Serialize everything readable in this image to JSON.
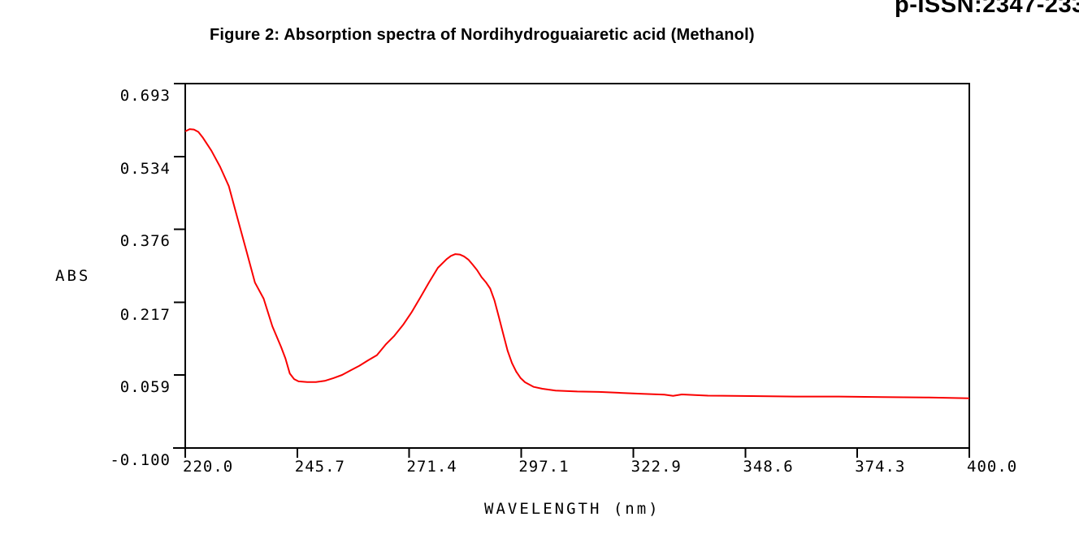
{
  "page": {
    "issn_text": "p-ISSN:2347-233",
    "figure_title": "Figure 2: Absorption spectra of Nordihydroguaiaretic acid (Methanol)"
  },
  "chart_data": {
    "type": "line",
    "title": "Figure 2: Absorption spectra of Nordihydroguaiaretic acid (Methanol)",
    "xlabel": "WAVELENGTH (nm)",
    "ylabel": "ABS",
    "xlim": [
      220.0,
      400.0
    ],
    "ylim": [
      -0.1,
      0.693
    ],
    "x_ticks": [
      "220.0",
      "245.7",
      "271.4",
      "297.1",
      "322.9",
      "348.6",
      "374.3",
      "400.0"
    ],
    "y_ticks": [
      "0.693",
      "0.534",
      "0.376",
      "0.217",
      "0.059",
      "-0.100"
    ],
    "grid": false,
    "legend_position": "none",
    "line_color": "#fa0000",
    "frame_color": "#000000",
    "series": [
      {
        "name": "Nordihydroguaiaretic acid absorption (Methanol)",
        "x": [
          220,
          221,
          222,
          223,
          224,
          226,
          228,
          230,
          232,
          234,
          236,
          238,
          240,
          242,
          243,
          244,
          245,
          246,
          248,
          250,
          252,
          254,
          256,
          258,
          260,
          262,
          264,
          266,
          268,
          270,
          272,
          274,
          276,
          278,
          280,
          281,
          282,
          283,
          284,
          285,
          286,
          287,
          288,
          289,
          290,
          291,
          292,
          293,
          294,
          295,
          296,
          297,
          298,
          300,
          302,
          305,
          310,
          315,
          320,
          325,
          330,
          332,
          334,
          340,
          350,
          360,
          370,
          380,
          390,
          400
        ],
        "y": [
          0.589,
          0.594,
          0.593,
          0.588,
          0.576,
          0.547,
          0.512,
          0.47,
          0.4,
          0.33,
          0.26,
          0.225,
          0.165,
          0.12,
          0.095,
          0.062,
          0.05,
          0.045,
          0.0435,
          0.0435,
          0.046,
          0.052,
          0.059,
          0.069,
          0.079,
          0.091,
          0.102,
          0.125,
          0.144,
          0.168,
          0.196,
          0.228,
          0.261,
          0.292,
          0.311,
          0.318,
          0.322,
          0.321,
          0.317,
          0.31,
          0.299,
          0.287,
          0.272,
          0.261,
          0.247,
          0.221,
          0.185,
          0.148,
          0.112,
          0.085,
          0.066,
          0.052,
          0.043,
          0.033,
          0.029,
          0.025,
          0.023,
          0.022,
          0.02,
          0.018,
          0.016,
          0.0135,
          0.0165,
          0.014,
          0.013,
          0.012,
          0.012,
          0.011,
          0.01,
          0.008
        ]
      }
    ],
    "peak_abs_max_nm": 282,
    "peak_abs_max_value": 0.322
  }
}
